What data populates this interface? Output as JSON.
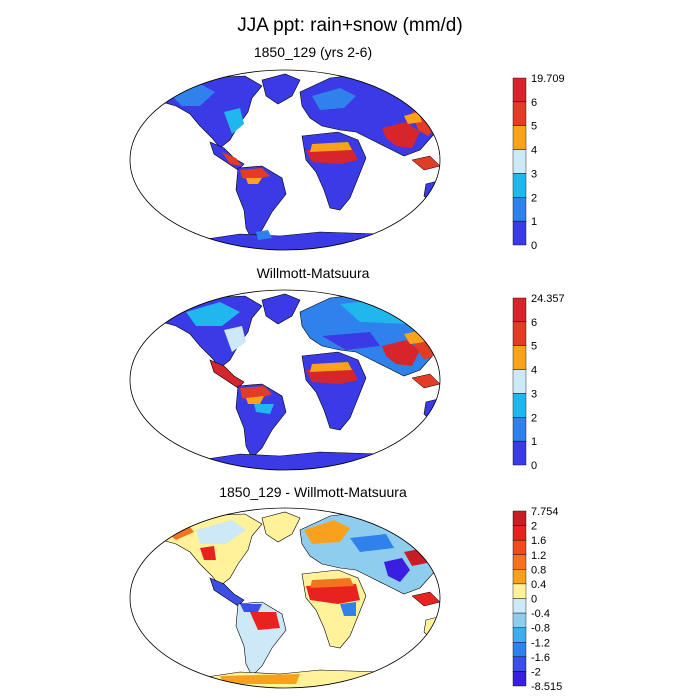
{
  "title": "JJA ppt: rain+snow (mm/d)",
  "panels": [
    {
      "title": "1850_129 (yrs 2-6)",
      "colorbar": {
        "labels": [
          "19.709",
          "6",
          "5",
          "4",
          "3",
          "2",
          "1",
          "0"
        ],
        "colors": [
          "#d7262b",
          "#e23b26",
          "#f9a21a",
          "#cde8f6",
          "#1fb7ee",
          "#2f82ec",
          "#3a3ae6"
        ]
      }
    },
    {
      "title": "Willmott-Matsuura",
      "colorbar": {
        "labels": [
          "24.357",
          "6",
          "5",
          "4",
          "3",
          "2",
          "1",
          "0"
        ],
        "colors": [
          "#d7262b",
          "#e23b26",
          "#f9a21a",
          "#cde8f6",
          "#1fb7ee",
          "#2f82ec",
          "#3a3ae6"
        ]
      }
    },
    {
      "title": "1850_129 - Willmott-Matsuura",
      "colorbar": {
        "labels": [
          "7.754",
          "2",
          "1.6",
          "1.2",
          "0.8",
          "0.4",
          "0",
          "-0.4",
          "-0.8",
          "-1.2",
          "-1.6",
          "-2",
          "-8.515"
        ],
        "colors": [
          "#c91d25",
          "#e8221e",
          "#f24a1d",
          "#f5731f",
          "#f9a11c",
          "#fff29a",
          "#cde8f6",
          "#8fcdef",
          "#3eadeb",
          "#2f82ec",
          "#3b4ee5",
          "#3a1fe0"
        ]
      }
    }
  ]
}
